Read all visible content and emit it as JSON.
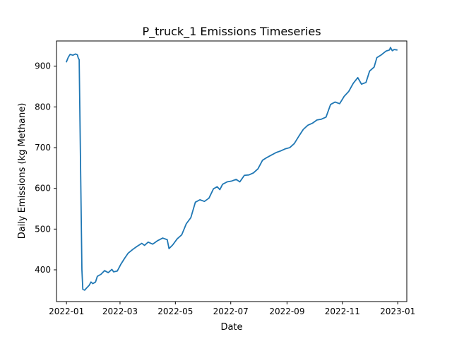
{
  "chart_data": {
    "type": "line",
    "title": "P_truck_1 Emissions Timeseries",
    "xlabel": "Date",
    "ylabel": "Daily Emissions (kg Methane)",
    "xlim": [
      "2021-12-21",
      "2023-01-11"
    ],
    "ylim": [
      322,
      962
    ],
    "x_ticks": [
      "2022-01",
      "2022-03",
      "2022-05",
      "2022-07",
      "2022-09",
      "2022-11",
      "2023-01"
    ],
    "y_ticks": [
      400,
      500,
      600,
      700,
      800,
      900
    ],
    "grid": false,
    "series": [
      {
        "color": "#1f77b4",
        "points": [
          [
            "2022-01-01",
            911
          ],
          [
            "2022-01-03",
            922
          ],
          [
            "2022-01-05",
            929
          ],
          [
            "2022-01-08",
            927
          ],
          [
            "2022-01-11",
            930
          ],
          [
            "2022-01-13",
            928
          ],
          [
            "2022-01-14",
            920
          ],
          [
            "2022-01-15",
            916
          ],
          [
            "2022-01-18",
            400
          ],
          [
            "2022-01-19",
            352
          ],
          [
            "2022-01-21",
            350
          ],
          [
            "2022-01-23",
            355
          ],
          [
            "2022-01-26",
            362
          ],
          [
            "2022-01-28",
            370
          ],
          [
            "2022-01-30",
            366
          ],
          [
            "2022-02-02",
            370
          ],
          [
            "2022-02-04",
            384
          ],
          [
            "2022-02-08",
            389
          ],
          [
            "2022-02-12",
            398
          ],
          [
            "2022-02-16",
            393
          ],
          [
            "2022-02-20",
            401
          ],
          [
            "2022-02-22",
            395
          ],
          [
            "2022-02-26",
            397
          ],
          [
            "2022-03-02",
            414
          ],
          [
            "2022-03-06",
            428
          ],
          [
            "2022-03-10",
            441
          ],
          [
            "2022-03-15",
            450
          ],
          [
            "2022-03-20",
            458
          ],
          [
            "2022-03-25",
            465
          ],
          [
            "2022-03-28",
            460
          ],
          [
            "2022-04-01",
            468
          ],
          [
            "2022-04-06",
            463
          ],
          [
            "2022-04-11",
            471
          ],
          [
            "2022-04-17",
            478
          ],
          [
            "2022-04-22",
            474
          ],
          [
            "2022-04-24",
            452
          ],
          [
            "2022-04-28",
            461
          ],
          [
            "2022-05-03",
            476
          ],
          [
            "2022-05-08",
            486
          ],
          [
            "2022-05-13",
            513
          ],
          [
            "2022-05-18",
            528
          ],
          [
            "2022-05-23",
            566
          ],
          [
            "2022-05-28",
            572
          ],
          [
            "2022-06-02",
            568
          ],
          [
            "2022-06-07",
            576
          ],
          [
            "2022-06-12",
            599
          ],
          [
            "2022-06-16",
            604
          ],
          [
            "2022-06-19",
            597
          ],
          [
            "2022-06-22",
            610
          ],
          [
            "2022-06-27",
            616
          ],
          [
            "2022-07-02",
            618
          ],
          [
            "2022-07-07",
            622
          ],
          [
            "2022-07-11",
            616
          ],
          [
            "2022-07-16",
            632
          ],
          [
            "2022-07-21",
            633
          ],
          [
            "2022-07-26",
            638
          ],
          [
            "2022-07-31",
            648
          ],
          [
            "2022-08-05",
            669
          ],
          [
            "2022-08-10",
            676
          ],
          [
            "2022-08-15",
            682
          ],
          [
            "2022-08-20",
            688
          ],
          [
            "2022-08-25",
            692
          ],
          [
            "2022-08-30",
            697
          ],
          [
            "2022-09-04",
            700
          ],
          [
            "2022-09-09",
            710
          ],
          [
            "2022-09-14",
            728
          ],
          [
            "2022-09-19",
            745
          ],
          [
            "2022-09-24",
            755
          ],
          [
            "2022-09-29",
            760
          ],
          [
            "2022-10-04",
            768
          ],
          [
            "2022-10-09",
            770
          ],
          [
            "2022-10-14",
            775
          ],
          [
            "2022-10-19",
            806
          ],
          [
            "2022-10-24",
            812
          ],
          [
            "2022-10-29",
            808
          ],
          [
            "2022-11-03",
            826
          ],
          [
            "2022-11-08",
            838
          ],
          [
            "2022-11-13",
            858
          ],
          [
            "2022-11-18",
            872
          ],
          [
            "2022-11-22",
            856
          ],
          [
            "2022-11-27",
            860
          ],
          [
            "2022-12-01",
            888
          ],
          [
            "2022-12-06",
            898
          ],
          [
            "2022-12-09",
            921
          ],
          [
            "2022-12-14",
            928
          ],
          [
            "2022-12-19",
            937
          ],
          [
            "2022-12-23",
            940
          ],
          [
            "2022-12-24",
            946
          ],
          [
            "2022-12-26",
            938
          ],
          [
            "2022-12-28",
            941
          ],
          [
            "2022-12-31",
            940
          ]
        ]
      }
    ]
  }
}
